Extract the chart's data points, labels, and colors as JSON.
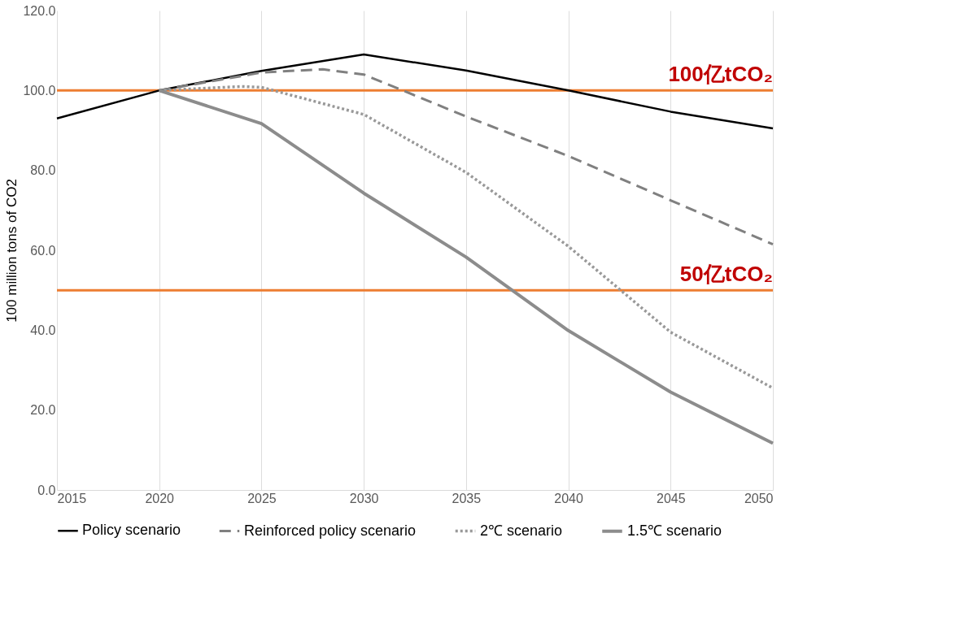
{
  "chart_data": {
    "type": "line",
    "ylabel": "100 million tons of CO2",
    "xlim": [
      2015,
      2050
    ],
    "xticks": [
      2015,
      2020,
      2025,
      2030,
      2035,
      2040,
      2045,
      2050
    ],
    "ylim": [
      0,
      120
    ],
    "yticks": [
      {
        "value": 0,
        "label": "0.0"
      },
      {
        "value": 20,
        "label": "20.0"
      },
      {
        "value": 40,
        "label": "40.0"
      },
      {
        "value": 60,
        "label": "60.0"
      },
      {
        "value": 80,
        "label": "80.0"
      },
      {
        "value": 100,
        "label": "100.0"
      },
      {
        "value": 120,
        "label": "120.0"
      }
    ],
    "grid": "x",
    "legend": "bottom",
    "marker": "none",
    "series": [
      {
        "name": "Policy scenario",
        "color": "#000000",
        "line_style": "solid",
        "x": [
          2015,
          2020,
          2025,
          2030,
          2035,
          2040,
          2045,
          2050
        ],
        "values": [
          93,
          100,
          104.9,
          109,
          105,
          100,
          94.7,
          90.5
        ]
      },
      {
        "name": "Reinforced policy scenario",
        "color": "#808080",
        "line_style": "dashed",
        "x": [
          2020,
          2025,
          2028,
          2030,
          2035,
          2040,
          2045,
          2050
        ],
        "values": [
          100,
          104.5,
          105.3,
          104,
          93.5,
          83.6,
          72.5,
          61.5
        ]
      },
      {
        "name": "2℃ scenario",
        "color": "#999999",
        "line_style": "dotted",
        "x": [
          2020,
          2024,
          2025,
          2030,
          2035,
          2040,
          2045,
          2050
        ],
        "values": [
          100,
          101,
          100.8,
          94,
          79.5,
          61,
          39.5,
          25.5
        ]
      },
      {
        "name": "1.5℃ scenario",
        "color": "#8c8c8c",
        "line_style": "solid",
        "x": [
          2020,
          2025,
          2030,
          2035,
          2040,
          2045,
          2050
        ],
        "values": [
          100,
          91.7,
          74.3,
          58.3,
          39.9,
          24.5,
          11.7
        ]
      }
    ],
    "ref_lines": [
      {
        "axis": "y",
        "value": 100,
        "label": "100亿tCO₂",
        "color": "#ed7d31"
      },
      {
        "axis": "y",
        "value": 50,
        "label": "50亿tCO₂",
        "color": "#ed7d31"
      }
    ]
  }
}
